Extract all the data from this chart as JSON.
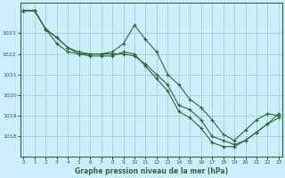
{
  "title": "Graphe pression niveau de la mer (hPa)",
  "bg_color": "#cceeff",
  "line_color": "#2d6a2d",
  "grid_color": "#99cccc",
  "x_ticks": [
    0,
    1,
    2,
    3,
    4,
    5,
    6,
    7,
    8,
    9,
    10,
    11,
    12,
    13,
    14,
    15,
    16,
    17,
    18,
    19,
    20,
    21,
    22,
    23
  ],
  "y_ticks": [
    1018,
    1019,
    1020,
    1021,
    1022,
    1023
  ],
  "ylim": [
    1017.0,
    1024.5
  ],
  "xlim": [
    -0.3,
    23.3
  ],
  "lines": [
    [
      1024.1,
      1024.1,
      1023.2,
      1022.8,
      1022.3,
      1022.1,
      1022.0,
      1022.0,
      1022.1,
      1022.5,
      1023.4,
      1022.7,
      1022.1,
      1021.0,
      1020.5,
      1019.8,
      1019.4,
      1018.8,
      1018.1,
      1017.8,
      1018.3,
      1018.8,
      1019.1,
      1019.0
    ],
    [
      1024.1,
      1024.1,
      1023.2,
      1022.8,
      1022.3,
      1022.0,
      1022.0,
      1022.0,
      1022.0,
      1022.0,
      1021.9,
      1021.5,
      1021.0,
      1020.5,
      1019.5,
      1019.3,
      1018.8,
      1018.0,
      1017.8,
      1017.6,
      1017.8,
      1018.2,
      1018.6,
      1018.9
    ],
    [
      1024.1,
      1024.1,
      1023.2,
      1022.5,
      1022.1,
      1022.0,
      1021.9,
      1021.9,
      1021.9,
      1022.1,
      1022.0,
      1021.4,
      1020.8,
      1020.2,
      1019.2,
      1018.9,
      1018.4,
      1017.7,
      1017.5,
      1017.5,
      1017.8,
      1018.2,
      1018.6,
      1019.1
    ]
  ]
}
